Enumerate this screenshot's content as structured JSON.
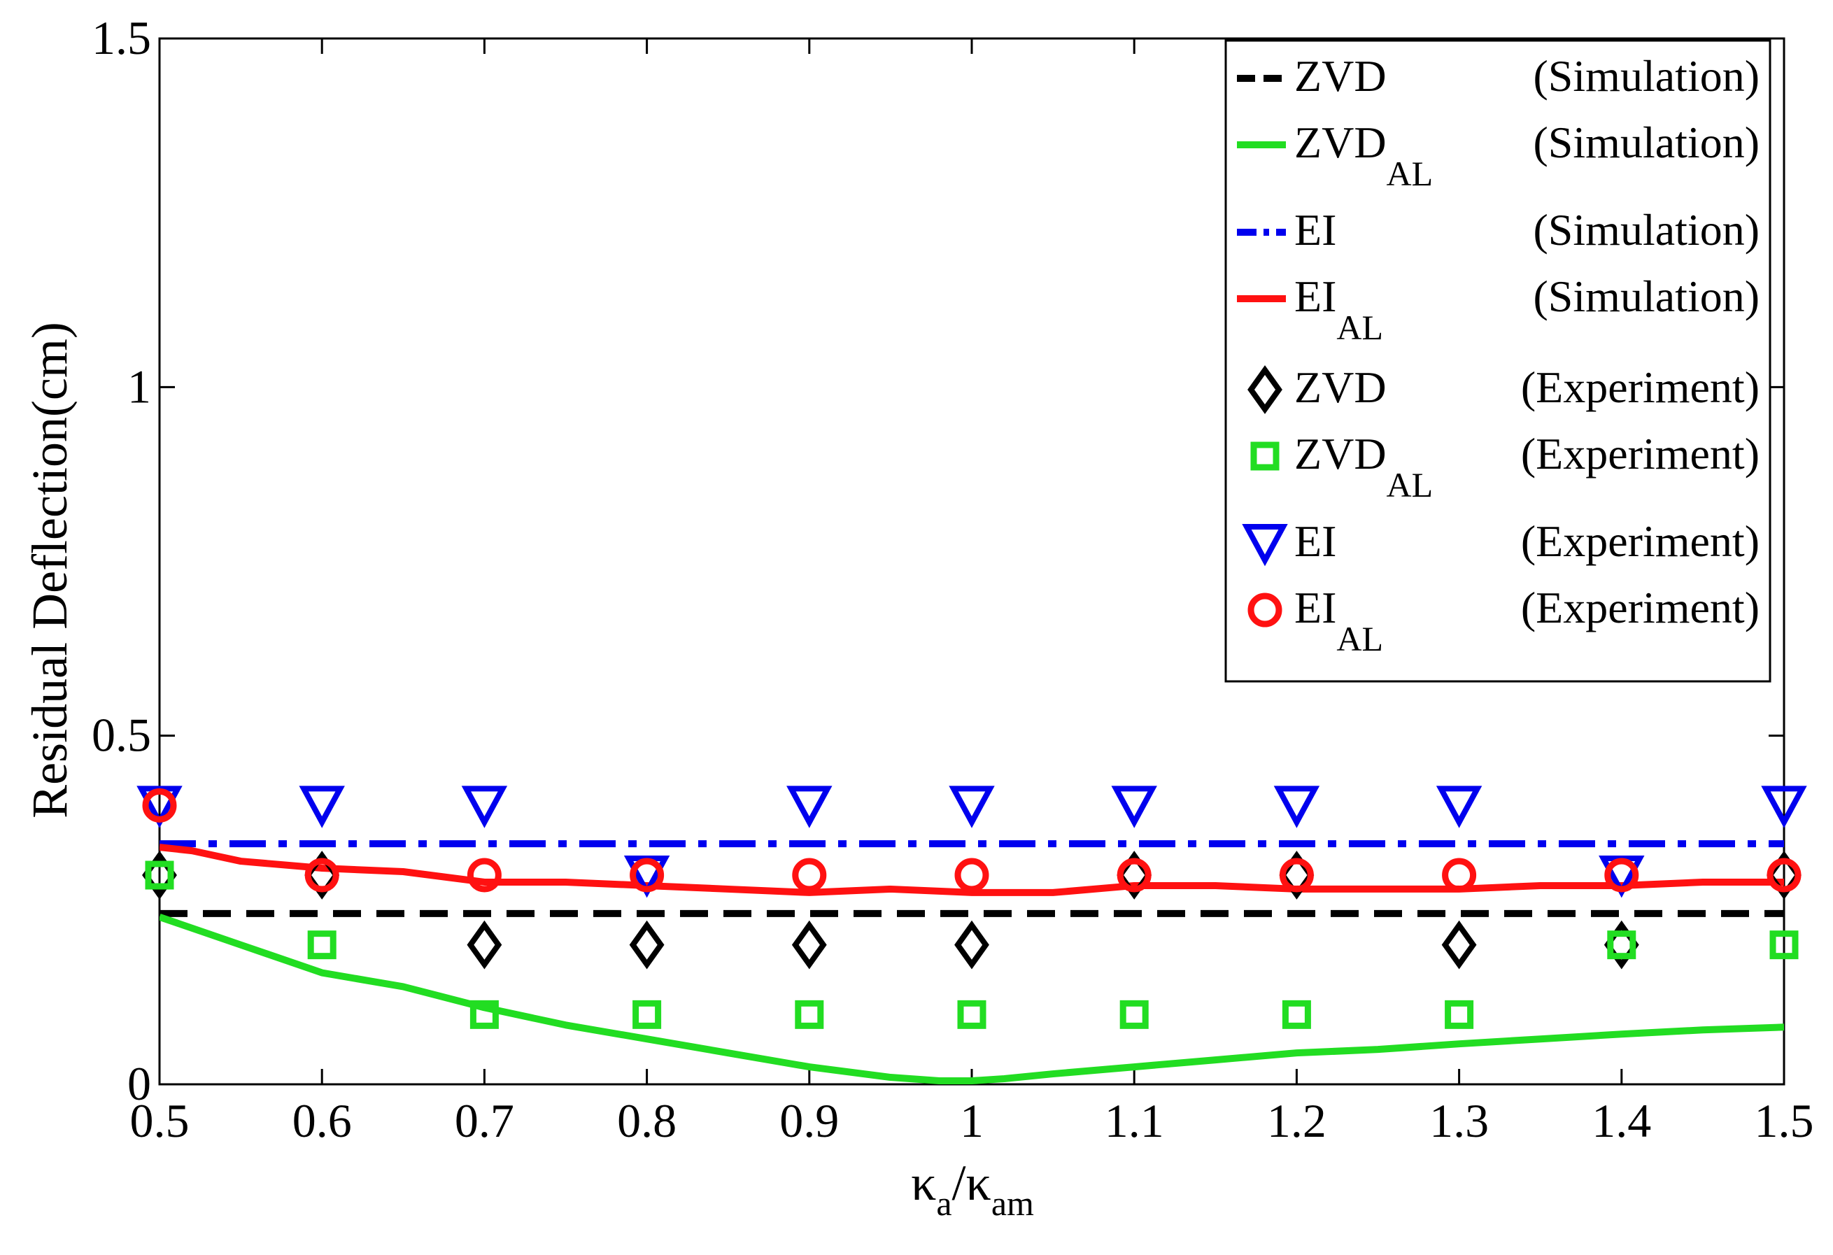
{
  "chart_data": {
    "type": "line",
    "title": "",
    "xlabel": {
      "main": "κ",
      "sub1": "a",
      "sep": "/κ",
      "sub2": "am"
    },
    "ylabel": "Residual Deflection(cm)",
    "xlim": [
      0.5,
      1.5
    ],
    "ylim": [
      0,
      1.5
    ],
    "xticks": [
      "0.5",
      "0.6",
      "0.7",
      "0.8",
      "0.9",
      "1",
      "1.1",
      "1.2",
      "1.3",
      "1.4",
      "1.5"
    ],
    "yticks": [
      "0",
      "0.5",
      "1",
      "1.5"
    ],
    "grid": false,
    "legend_position": "top-right",
    "simulation": [
      {
        "name": "ZVD",
        "sub": "",
        "note": "(Simulation)",
        "color": "#000000",
        "style": "dash",
        "x": [
          0.5,
          1.5
        ],
        "y": [
          0.245,
          0.245
        ]
      },
      {
        "name": "ZVD",
        "sub": "AL",
        "note": "(Simulation)",
        "color": "#22dd22",
        "style": "solid",
        "x": [
          0.5,
          0.55,
          0.6,
          0.65,
          0.7,
          0.75,
          0.8,
          0.85,
          0.9,
          0.95,
          0.98,
          1.0,
          1.02,
          1.05,
          1.1,
          1.15,
          1.2,
          1.25,
          1.3,
          1.35,
          1.4,
          1.45,
          1.5
        ],
        "y": [
          0.24,
          0.2,
          0.16,
          0.14,
          0.11,
          0.085,
          0.065,
          0.045,
          0.025,
          0.01,
          0.005,
          0.005,
          0.008,
          0.015,
          0.025,
          0.035,
          0.045,
          0.05,
          0.058,
          0.065,
          0.072,
          0.078,
          0.082
        ]
      },
      {
        "name": "EI",
        "sub": "",
        "note": "(Simulation)",
        "color": "#0000ee",
        "style": "dashdot",
        "x": [
          0.5,
          1.5
        ],
        "y": [
          0.345,
          0.345
        ]
      },
      {
        "name": "EI",
        "sub": "AL",
        "note": "(Simulation)",
        "color": "#ff1111",
        "style": "solid",
        "x": [
          0.5,
          0.52,
          0.55,
          0.6,
          0.65,
          0.7,
          0.75,
          0.8,
          0.85,
          0.9,
          0.95,
          1.0,
          1.05,
          1.1,
          1.15,
          1.2,
          1.25,
          1.3,
          1.35,
          1.4,
          1.45,
          1.5
        ],
        "y": [
          0.34,
          0.335,
          0.32,
          0.31,
          0.305,
          0.29,
          0.29,
          0.285,
          0.28,
          0.275,
          0.28,
          0.275,
          0.275,
          0.285,
          0.285,
          0.28,
          0.28,
          0.28,
          0.285,
          0.285,
          0.29,
          0.29
        ]
      }
    ],
    "experiment": [
      {
        "name": "ZVD",
        "sub": "",
        "note": "(Experiment)",
        "color": "#000000",
        "marker": "diamond",
        "x": [
          0.5,
          0.6,
          0.7,
          0.8,
          0.9,
          1.0,
          1.1,
          1.2,
          1.3,
          1.4,
          1.5
        ],
        "y": [
          0.3,
          0.3,
          0.2,
          0.2,
          0.2,
          0.2,
          0.3,
          0.3,
          0.2,
          0.2,
          0.3
        ]
      },
      {
        "name": "ZVD",
        "sub": "AL",
        "note": "(Experiment)",
        "color": "#22dd22",
        "marker": "square",
        "x": [
          0.5,
          0.6,
          0.7,
          0.8,
          0.9,
          1.0,
          1.1,
          1.2,
          1.3,
          1.4,
          1.5
        ],
        "y": [
          0.3,
          0.2,
          0.1,
          0.1,
          0.1,
          0.1,
          0.1,
          0.1,
          0.1,
          0.2,
          0.2
        ]
      },
      {
        "name": "EI",
        "sub": "",
        "note": "(Experiment)",
        "color": "#0000ee",
        "marker": "triangle-down",
        "x": [
          0.5,
          0.6,
          0.7,
          0.8,
          0.9,
          1.0,
          1.1,
          1.2,
          1.3,
          1.4,
          1.5
        ],
        "y": [
          0.4,
          0.4,
          0.4,
          0.3,
          0.4,
          0.4,
          0.4,
          0.4,
          0.4,
          0.3,
          0.4
        ]
      },
      {
        "name": "EI",
        "sub": "AL",
        "note": "(Experiment)",
        "color": "#ff1111",
        "marker": "circle",
        "x": [
          0.5,
          0.6,
          0.7,
          0.8,
          0.9,
          1.0,
          1.1,
          1.2,
          1.3,
          1.4,
          1.5
        ],
        "y": [
          0.4,
          0.3,
          0.3,
          0.3,
          0.3,
          0.3,
          0.3,
          0.3,
          0.3,
          0.3,
          0.3
        ]
      }
    ]
  }
}
